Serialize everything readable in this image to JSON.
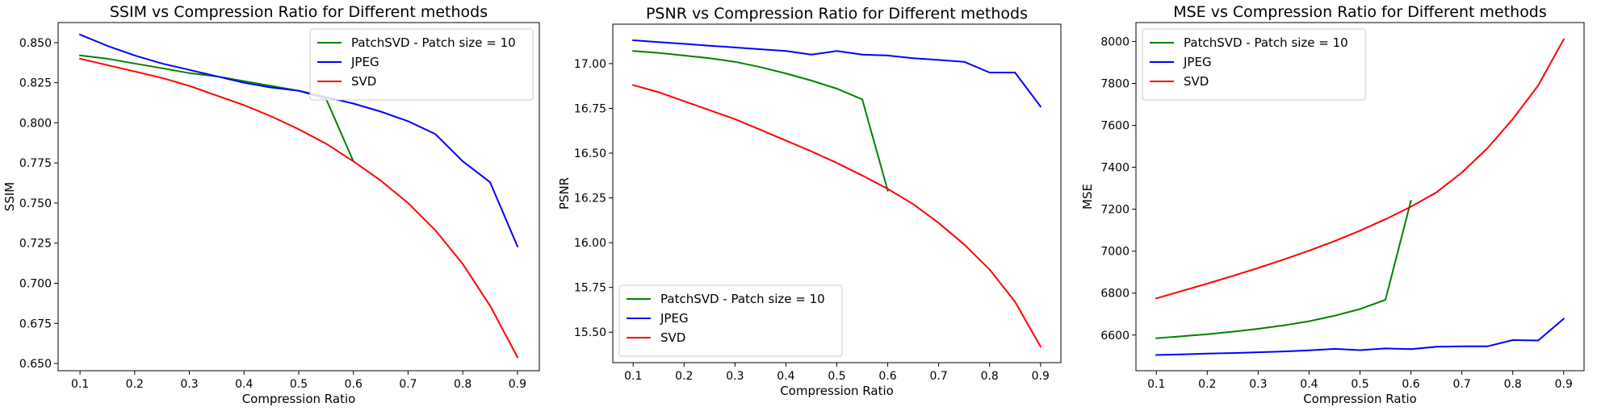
{
  "chart_data": [
    {
      "type": "line",
      "title": "SSIM vs Compression Ratio for Different methods",
      "xlabel": "Compression Ratio",
      "ylabel": "SSIM",
      "xlim": [
        0.06,
        0.94
      ],
      "ylim": [
        0.6455,
        0.8625
      ],
      "xticks": [
        0.1,
        0.2,
        0.3,
        0.4,
        0.5,
        0.6,
        0.7,
        0.8,
        0.9
      ],
      "yticks": [
        0.65,
        0.675,
        0.7,
        0.725,
        0.75,
        0.775,
        0.8,
        0.825,
        0.85
      ],
      "ydecimals": 3,
      "legend_position": "top-right",
      "x": [
        0.1,
        0.15,
        0.2,
        0.25,
        0.3,
        0.35,
        0.4,
        0.45,
        0.5,
        0.55,
        0.6,
        0.65,
        0.7,
        0.75,
        0.8,
        0.85,
        0.9
      ],
      "series": [
        {
          "name": "PatchSVD - Patch size = 10",
          "color": "#008000",
          "values": [
            0.842,
            0.84,
            0.837,
            0.834,
            0.831,
            0.829,
            0.826,
            0.823,
            0.82,
            0.815,
            0.776,
            null,
            null,
            null,
            null,
            null,
            null
          ]
        },
        {
          "name": "JPEG",
          "color": "#0000ff",
          "values": [
            0.855,
            0.848,
            0.842,
            0.837,
            0.833,
            0.829,
            0.825,
            0.822,
            0.82,
            0.816,
            0.812,
            0.807,
            0.801,
            0.793,
            0.776,
            0.763,
            0.723
          ]
        },
        {
          "name": "SVD",
          "color": "#ff0000",
          "values": [
            0.84,
            0.836,
            0.832,
            0.828,
            0.823,
            0.817,
            0.811,
            0.804,
            0.796,
            0.787,
            0.776,
            0.764,
            0.75,
            0.733,
            0.712,
            0.686,
            0.654
          ]
        }
      ]
    },
    {
      "type": "line",
      "title": "PSNR vs Compression Ratio for Different methods",
      "xlabel": "Compression Ratio",
      "ylabel": "PSNR",
      "xlim": [
        0.06,
        0.94
      ],
      "ylim": [
        15.33,
        17.22
      ],
      "xticks": [
        0.1,
        0.2,
        0.3,
        0.4,
        0.5,
        0.6,
        0.7,
        0.8,
        0.9
      ],
      "yticks": [
        15.5,
        15.75,
        16.0,
        16.25,
        16.5,
        16.75,
        17.0
      ],
      "ydecimals": 2,
      "legend_position": "bottom-left",
      "x": [
        0.1,
        0.15,
        0.2,
        0.25,
        0.3,
        0.35,
        0.4,
        0.45,
        0.5,
        0.55,
        0.6,
        0.65,
        0.7,
        0.75,
        0.8,
        0.85,
        0.9
      ],
      "series": [
        {
          "name": "PatchSVD - Patch size = 10",
          "color": "#008000",
          "values": [
            17.07,
            17.06,
            17.045,
            17.03,
            17.01,
            16.98,
            16.945,
            16.905,
            16.86,
            16.8,
            16.29,
            null,
            null,
            null,
            null,
            null,
            null
          ]
        },
        {
          "name": "JPEG",
          "color": "#0000ff",
          "values": [
            17.13,
            17.12,
            17.11,
            17.1,
            17.09,
            17.08,
            17.07,
            17.05,
            17.07,
            17.05,
            17.045,
            17.03,
            17.02,
            17.01,
            16.95,
            16.95,
            16.76
          ]
        },
        {
          "name": "SVD",
          "color": "#ff0000",
          "values": [
            16.88,
            16.84,
            16.79,
            16.74,
            16.69,
            16.63,
            16.57,
            16.51,
            16.445,
            16.375,
            16.3,
            16.215,
            16.11,
            15.99,
            15.85,
            15.67,
            15.42
          ]
        }
      ]
    },
    {
      "type": "line",
      "title": "MSE vs Compression Ratio for Different methods",
      "xlabel": "Compression Ratio",
      "ylabel": "MSE",
      "xlim": [
        0.06,
        0.94
      ],
      "ylim": [
        6430,
        8090
      ],
      "xticks": [
        0.1,
        0.2,
        0.3,
        0.4,
        0.5,
        0.6,
        0.7,
        0.8,
        0.9
      ],
      "yticks": [
        6600,
        6800,
        7000,
        7200,
        7400,
        7600,
        7800,
        8000
      ],
      "ydecimals": 0,
      "legend_position": "top-left",
      "x": [
        0.1,
        0.15,
        0.2,
        0.25,
        0.3,
        0.35,
        0.4,
        0.45,
        0.5,
        0.55,
        0.6,
        0.65,
        0.7,
        0.75,
        0.8,
        0.85,
        0.9
      ],
      "series": [
        {
          "name": "PatchSVD - Patch size = 10",
          "color": "#008000",
          "values": [
            6585,
            6594,
            6604,
            6616,
            6630,
            6646,
            6666,
            6692,
            6724,
            6768,
            7240,
            null,
            null,
            null,
            null,
            null,
            null
          ]
        },
        {
          "name": "JPEG",
          "color": "#0000ff",
          "values": [
            6505,
            6508,
            6512,
            6514,
            6518,
            6522,
            6527,
            6534,
            6528,
            6536,
            6533,
            6544,
            6546,
            6546,
            6576,
            6574,
            6678
          ]
        },
        {
          "name": "SVD",
          "color": "#ff0000",
          "values": [
            6775,
            6810,
            6845,
            6882,
            6920,
            6960,
            7002,
            7048,
            7098,
            7152,
            7212,
            7280,
            7375,
            7490,
            7630,
            7790,
            8010
          ]
        }
      ]
    }
  ]
}
